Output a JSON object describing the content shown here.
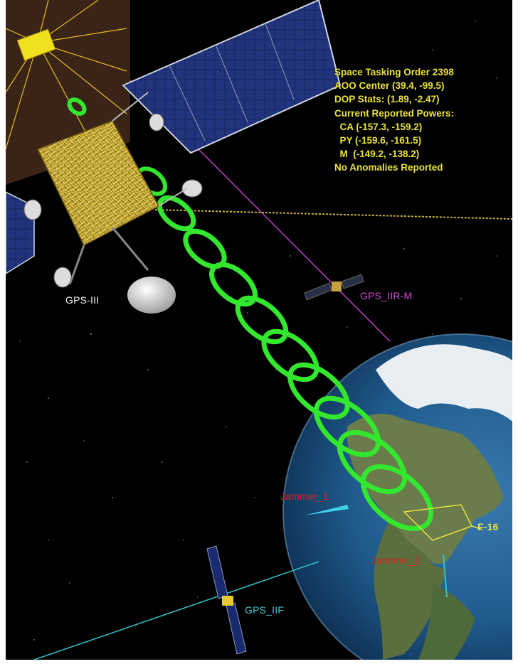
{
  "info_panel": {
    "lines": [
      "Space Tasking Order 2398",
      "AOO Center (39.4, -99.5)",
      "DOP Stats: (1.89, -2.47)",
      "Current Reported Powers:",
      "  CA (-157.3, -159.2)",
      "  PY (-159.6, -161.5)",
      "  M  (-149.2, -138.2)",
      "No Anomalies Reported"
    ]
  },
  "labels": {
    "gps_iii": "GPS-III",
    "gps_iir_m": "GPS_IIR-M",
    "gps_iif": "GPS_IIF",
    "f16": "F-16",
    "jammer_1": "Jammer_1",
    "jammer_2": "Jammer_2"
  },
  "colors": {
    "space": "#000000",
    "info_text": "#e8e23a",
    "beam": "#33e62e",
    "iirm_orbit": "#c040c8",
    "iif_orbit": "#2ec4c8",
    "jammer": "#e02020",
    "solar_panel": "#1a2a6e",
    "gold_foil": "#c9b03a"
  }
}
